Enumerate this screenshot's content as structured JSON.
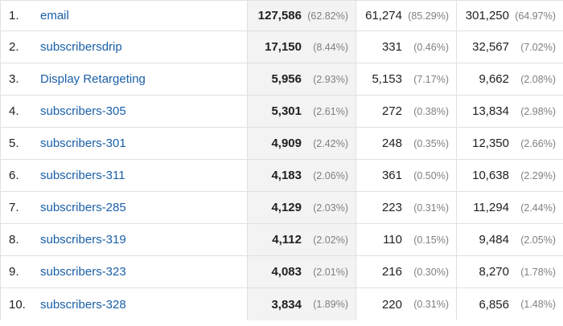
{
  "rows": [
    {
      "index": "1.",
      "label": "email",
      "m1": "127,586",
      "m1_pct": "(62.82%)",
      "m2": "61,274",
      "m2_pct": "(85.29%)",
      "m3": "301,250",
      "m3_pct": "(64.97%)"
    },
    {
      "index": "2.",
      "label": "subscribersdrip",
      "m1": "17,150",
      "m1_pct": "(8.44%)",
      "m2": "331",
      "m2_pct": "(0.46%)",
      "m3": "32,567",
      "m3_pct": "(7.02%)"
    },
    {
      "index": "3.",
      "label": "Display Retargeting",
      "m1": "5,956",
      "m1_pct": "(2.93%)",
      "m2": "5,153",
      "m2_pct": "(7.17%)",
      "m3": "9,662",
      "m3_pct": "(2.08%)"
    },
    {
      "index": "4.",
      "label": "subscribers-305",
      "m1": "5,301",
      "m1_pct": "(2.61%)",
      "m2": "272",
      "m2_pct": "(0.38%)",
      "m3": "13,834",
      "m3_pct": "(2.98%)"
    },
    {
      "index": "5.",
      "label": "subscribers-301",
      "m1": "4,909",
      "m1_pct": "(2.42%)",
      "m2": "248",
      "m2_pct": "(0.35%)",
      "m3": "12,350",
      "m3_pct": "(2.66%)"
    },
    {
      "index": "6.",
      "label": "subscribers-311",
      "m1": "4,183",
      "m1_pct": "(2.06%)",
      "m2": "361",
      "m2_pct": "(0.50%)",
      "m3": "10,638",
      "m3_pct": "(2.29%)"
    },
    {
      "index": "7.",
      "label": "subscribers-285",
      "m1": "4,129",
      "m1_pct": "(2.03%)",
      "m2": "223",
      "m2_pct": "(0.31%)",
      "m3": "11,294",
      "m3_pct": "(2.44%)"
    },
    {
      "index": "8.",
      "label": "subscribers-319",
      "m1": "4,112",
      "m1_pct": "(2.02%)",
      "m2": "110",
      "m2_pct": "(0.15%)",
      "m3": "9,484",
      "m3_pct": "(2.05%)"
    },
    {
      "index": "9.",
      "label": "subscribers-323",
      "m1": "4,083",
      "m1_pct": "(2.01%)",
      "m2": "216",
      "m2_pct": "(0.30%)",
      "m3": "8,270",
      "m3_pct": "(1.78%)"
    },
    {
      "index": "10.",
      "label": "subscribers-328",
      "m1": "3,834",
      "m1_pct": "(1.89%)",
      "m2": "220",
      "m2_pct": "(0.31%)",
      "m3": "6,856",
      "m3_pct": "(1.48%)"
    }
  ]
}
